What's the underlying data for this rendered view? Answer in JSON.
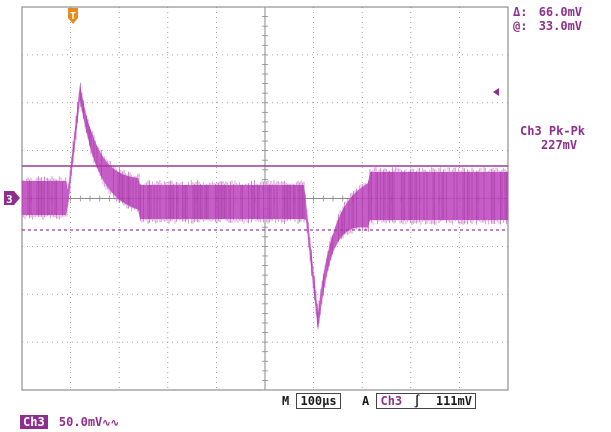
{
  "cursor_readout": {
    "delta_symbol": "Δ:",
    "delta_value": "66.0mV",
    "at_symbol": "@:",
    "at_value": "33.0mV"
  },
  "measurement": {
    "label": "Ch3 Pk-Pk",
    "value": "227mV"
  },
  "channel_marker": "3",
  "trigger_marker": "T",
  "horizontal": {
    "mode_label": "M",
    "timebase": "100µs"
  },
  "trigger": {
    "label": "A",
    "source": "Ch3",
    "slope_symbol": "∫",
    "level": "111mV"
  },
  "channel_settings": {
    "label": "Ch3",
    "scale": "50.0mV",
    "coupling_symbol": "∿∿"
  },
  "colors": {
    "trace": "#bb3fbb",
    "cursor": "#9b3a9b",
    "trigger_marker": "#e88a1c",
    "graticule": "#8a8a8a"
  }
}
